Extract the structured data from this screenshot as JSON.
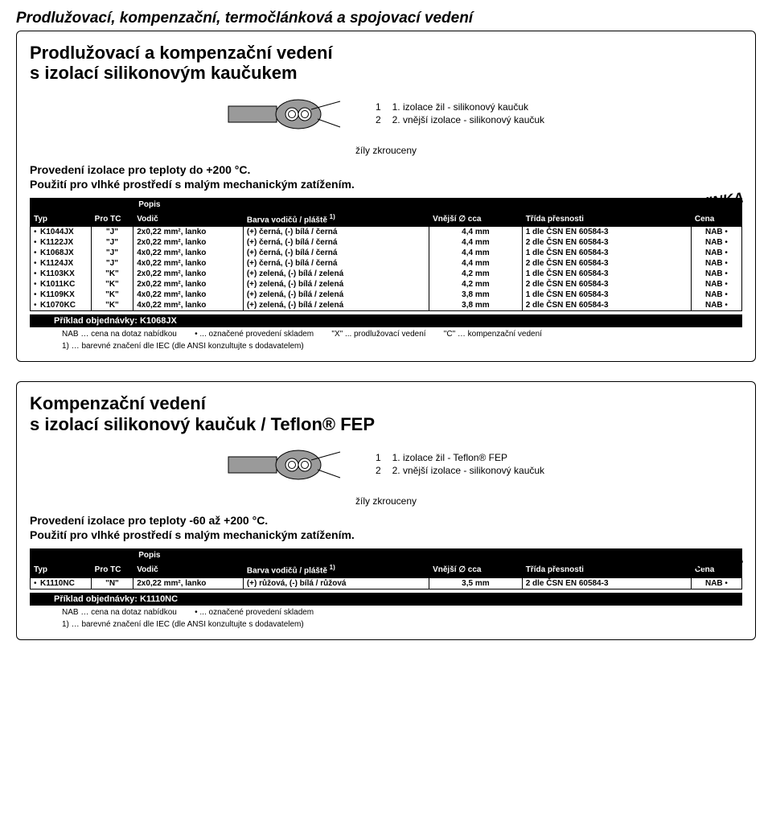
{
  "pageTitle": "Prodlužovací, kompenzační, termočlánková a spojovací vedení",
  "novinka": "NOVINKA",
  "section1": {
    "title": "Prodlužovací a kompenzační vedení\ns izolací silikonovým kaučukem",
    "legend1": "1. izolace žil - silikonový kaučuk",
    "legend2": "2. vnější izolace - silikonový kaučuk",
    "twist": "žíly zkrouceny",
    "spec": "Provedení izolace pro teploty do +200 °C.\nPoužití pro vlhké prostředí s malým mechanickým zatížením.",
    "popisLabel": "Popis",
    "headers": {
      "typ": "Typ",
      "protc": "Pro TC",
      "vodic": "Vodič",
      "barva": "Barva vodičů / pláště",
      "barvaNote": "1)",
      "vnej": "Vnější ∅ cca",
      "trida": "Třída přesnosti",
      "cena": "Cena"
    },
    "rows": [
      {
        "typ": "K1044JX",
        "tc": "\"J\"",
        "vodic": "2x0,22 mm², lanko",
        "barva": "(+) černá, (-) bílá / černá",
        "vnej": "4,4 mm",
        "trida": "1 dle ČSN EN 60584-3",
        "cena": "NAB"
      },
      {
        "typ": "K1122JX",
        "tc": "\"J\"",
        "vodic": "2x0,22 mm², lanko",
        "barva": "(+) černá, (-) bílá / černá",
        "vnej": "4,4 mm",
        "trida": "2 dle ČSN EN 60584-3",
        "cena": "NAB"
      },
      {
        "typ": "K1068JX",
        "tc": "\"J\"",
        "vodic": "4x0,22 mm², lanko",
        "barva": "(+) černá, (-) bílá / černá",
        "vnej": "4,4 mm",
        "trida": "1 dle ČSN EN 60584-3",
        "cena": "NAB"
      },
      {
        "typ": "K1124JX",
        "tc": "\"J\"",
        "vodic": "4x0,22 mm², lanko",
        "barva": "(+) černá, (-) bílá / černá",
        "vnej": "4,4 mm",
        "trida": "2 dle ČSN EN 60584-3",
        "cena": "NAB"
      },
      {
        "typ": "K1103KX",
        "tc": "\"K\"",
        "vodic": "2x0,22 mm², lanko",
        "barva": "(+) zelená, (-) bílá / zelená",
        "vnej": "4,2 mm",
        "trida": "1 dle ČSN EN 60584-3",
        "cena": "NAB"
      },
      {
        "typ": "K1011KC",
        "tc": "\"K\"",
        "vodic": "2x0,22 mm², lanko",
        "barva": "(+) zelená, (-) bílá / zelená",
        "vnej": "4,2 mm",
        "trida": "2 dle ČSN EN 60584-3",
        "cena": "NAB"
      },
      {
        "typ": "K1109KX",
        "tc": "\"K\"",
        "vodic": "4x0,22 mm², lanko",
        "barva": "(+) zelená, (-) bílá / zelená",
        "vnej": "3,8 mm",
        "trida": "1 dle ČSN EN 60584-3",
        "cena": "NAB"
      },
      {
        "typ": "K1070KC",
        "tc": "\"K\"",
        "vodic": "4x0,22 mm², lanko",
        "barva": "(+) zelená, (-) bílá / zelená",
        "vnej": "3,8 mm",
        "trida": "2 dle ČSN EN 60584-3",
        "cena": "NAB"
      }
    ],
    "orderExample": "Příklad objednávky: K1068JX",
    "foot1": "NAB … cena na dotaz nabídkou",
    "foot2": "• ... označené provedení skladem",
    "foot3": "\"X\" ... prodlužovací vedení",
    "foot4": "\"C\" … kompenzační vedení",
    "foot5": "1) … barevné značení dle IEC (dle ANSI konzultujte s dodavatelem)"
  },
  "section2": {
    "title": "Kompenzační vedení\ns izolací silikonový kaučuk / Teflon® FEP",
    "legend1": "1. izolace žil - Teflon® FEP",
    "legend2": "2. vnější izolace - silikonový kaučuk",
    "twist": "žíly zkrouceny",
    "spec": "Provedení izolace pro teploty -60 až +200 °C.\nPoužití pro vlhké prostředí s malým mechanickým zatížením.",
    "popisLabel": "Popis",
    "headers": {
      "typ": "Typ",
      "protc": "Pro TC",
      "vodic": "Vodič",
      "barva": "Barva vodičů / pláště",
      "barvaNote": "1)",
      "vnej": "Vnější ∅ cca",
      "trida": "Třída přesnosti",
      "cena": "Cena"
    },
    "rows": [
      {
        "typ": "K1110NC",
        "tc": "\"N\"",
        "vodic": "2x0,22 mm², lanko",
        "barva": "(+) růžová, (-) bílá / růžová",
        "vnej": "3,5 mm",
        "trida": "2 dle ČSN EN 60584-3",
        "cena": "NAB"
      }
    ],
    "orderExample": "Příklad objednávky: K1110NC",
    "foot1": "NAB … cena na dotaz nabídkou",
    "foot2": "• ... označené provedení skladem",
    "foot5": "1) … barevné značení dle IEC (dle ANSI konzultujte s dodavatelem)"
  },
  "cableSvg": {
    "outerFill": "#9a9a9a",
    "innerFill": "#ffffff",
    "stroke": "#000000"
  }
}
